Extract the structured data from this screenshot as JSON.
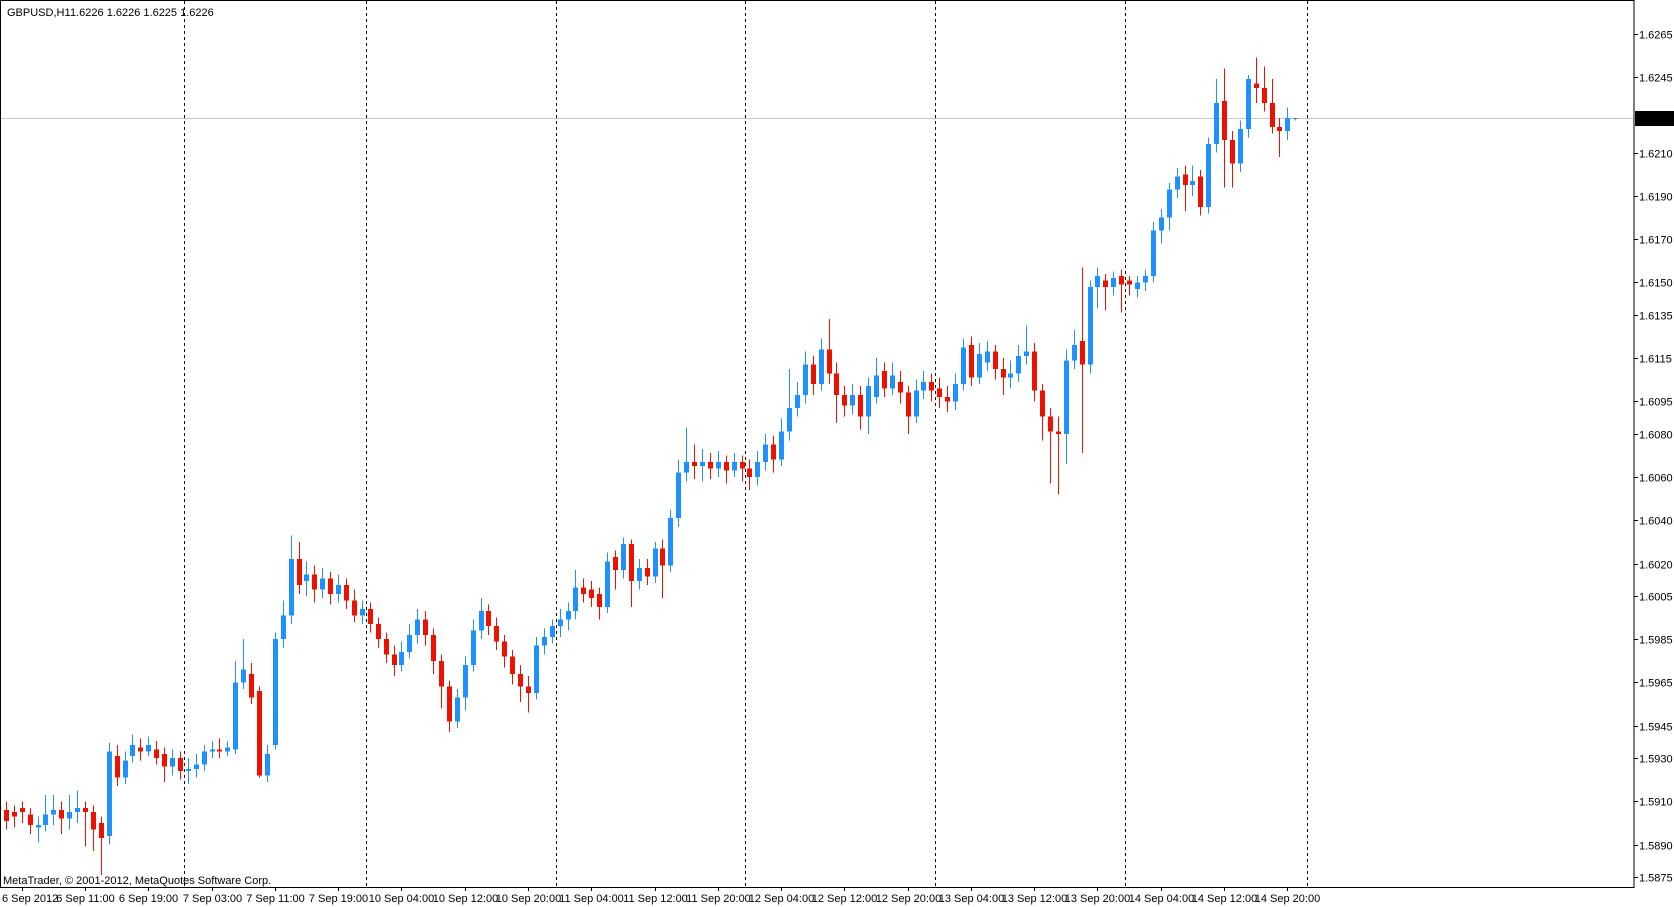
{
  "header": {
    "symbol": "GBPUSD,H1",
    "quote": "1.6226 1.6226 1.6225 1.6226"
  },
  "watermark": "MetaTrader, © 2001-2012, MetaQuotes Software Corp.",
  "colors": {
    "bull": "#1E90FF",
    "bear": "#EE1100",
    "separator": "#000000",
    "current_price_line": "#C8C8C8",
    "tag_bg": "#000000",
    "tag_text": "#FFFFFF",
    "axis_text": "#000000",
    "background": "#FFFFFF"
  },
  "y_axis": {
    "current_price": "1.6226",
    "ticks": [
      "1.6265",
      "1.6245",
      "1.6210",
      "1.6190",
      "1.6170",
      "1.6150",
      "1.6135",
      "1.6115",
      "1.6095",
      "1.6080",
      "1.6060",
      "1.6040",
      "1.6020",
      "1.6005",
      "1.5985",
      "1.5965",
      "1.5945",
      "1.5930",
      "1.5910",
      "1.5890",
      "1.5875"
    ]
  },
  "x_axis": {
    "labels": [
      {
        "index": 3,
        "text": "6 Sep 2012"
      },
      {
        "index": 11,
        "text": "6 Sep 11:00"
      },
      {
        "index": 19,
        "text": "6 Sep 19:00"
      },
      {
        "index": 27,
        "text": "7 Sep 03:00"
      },
      {
        "index": 35,
        "text": "7 Sep 11:00"
      },
      {
        "index": 43,
        "text": "7 Sep 19:00"
      },
      {
        "index": 51,
        "text": "10 Sep 04:00"
      },
      {
        "index": 59,
        "text": "10 Sep 12:00"
      },
      {
        "index": 67,
        "text": "10 Sep 20:00"
      },
      {
        "index": 75,
        "text": "11 Sep 04:00"
      },
      {
        "index": 83,
        "text": "11 Sep 12:00"
      },
      {
        "index": 91,
        "text": "11 Sep 20:00"
      },
      {
        "index": 99,
        "text": "12 Sep 04:00"
      },
      {
        "index": 107,
        "text": "12 Sep 12:00"
      },
      {
        "index": 115,
        "text": "12 Sep 20:00"
      },
      {
        "index": 123,
        "text": "13 Sep 04:00"
      },
      {
        "index": 131,
        "text": "13 Sep 12:00"
      },
      {
        "index": 139,
        "text": "13 Sep 20:00"
      },
      {
        "index": 147,
        "text": "14 Sep 04:00"
      },
      {
        "index": 155,
        "text": "14 Sep 12:00"
      },
      {
        "index": 163,
        "text": "14 Sep 20:00"
      }
    ]
  },
  "chart_data": {
    "type": "candlestick",
    "symbol": "GBPUSD",
    "timeframe": "H1",
    "title": "GBPUSD,H1",
    "current_price": 1.6226,
    "current_bar_quote": {
      "open": 1.6226,
      "high": 1.6226,
      "low": 1.6225,
      "close": 1.6226
    },
    "price_axis_ticks": [
      1.6265,
      1.6245,
      1.621,
      1.619,
      1.617,
      1.615,
      1.6135,
      1.6115,
      1.6095,
      1.608,
      1.606,
      1.604,
      1.602,
      1.6005,
      1.5985,
      1.5965,
      1.5945,
      1.593,
      1.591,
      1.589,
      1.5875
    ],
    "visible_price_range": [
      1.587,
      1.6281
    ],
    "day_start_indices": [
      24,
      47,
      71,
      95,
      119,
      143,
      166
    ],
    "grid": "vertical-day-separators",
    "legend_position": "none",
    "ohlc_note": "array of [open,high,low,close] per hourly bar, 6 Sep 2012 00:00 to 14 Sep 2012 21:00 (weekend gap omitted)",
    "ohlc": [
      [
        1.5896,
        1.5909,
        1.5889,
        1.5906
      ],
      [
        1.5906,
        1.591,
        1.5897,
        1.5901
      ],
      [
        1.5905,
        1.5908,
        1.5898,
        1.5903
      ],
      [
        1.5907,
        1.591,
        1.59,
        1.5905
      ],
      [
        1.5904,
        1.5907,
        1.5895,
        1.5899
      ],
      [
        1.5898,
        1.5903,
        1.5891,
        1.5899
      ],
      [
        1.5899,
        1.5913,
        1.5896,
        1.5904
      ],
      [
        1.5904,
        1.5913,
        1.5899,
        1.5906
      ],
      [
        1.5906,
        1.591,
        1.5895,
        1.5902
      ],
      [
        1.5902,
        1.5913,
        1.5897,
        1.5905
      ],
      [
        1.5905,
        1.5915,
        1.59,
        1.5907
      ],
      [
        1.5907,
        1.591,
        1.5889,
        1.5905
      ],
      [
        1.5905,
        1.5908,
        1.5887,
        1.5897
      ],
      [
        1.59,
        1.5903,
        1.5876,
        1.5893
      ],
      [
        1.5894,
        1.5937,
        1.589,
        1.5933
      ],
      [
        1.5931,
        1.5936,
        1.5917,
        1.5921
      ],
      [
        1.5921,
        1.5933,
        1.5918,
        1.5929
      ],
      [
        1.5931,
        1.5941,
        1.5928,
        1.5936
      ],
      [
        1.5935,
        1.5939,
        1.5929,
        1.5933
      ],
      [
        1.5933,
        1.594,
        1.5931,
        1.5936
      ],
      [
        1.5934,
        1.5938,
        1.5927,
        1.593
      ],
      [
        1.5932,
        1.5935,
        1.5919,
        1.5926
      ],
      [
        1.5926,
        1.5934,
        1.5922,
        1.593
      ],
      [
        1.593,
        1.5933,
        1.592,
        1.5924
      ],
      [
        1.5924,
        1.593,
        1.5918,
        1.5925
      ],
      [
        1.5925,
        1.5932,
        1.5921,
        1.5927
      ],
      [
        1.5927,
        1.5936,
        1.5924,
        1.5933
      ],
      [
        1.5933,
        1.5938,
        1.593,
        1.5934
      ],
      [
        1.5934,
        1.5939,
        1.593,
        1.5933
      ],
      [
        1.5933,
        1.5938,
        1.5931,
        1.5935
      ],
      [
        1.5934,
        1.5975,
        1.5932,
        1.5965
      ],
      [
        1.5965,
        1.5985,
        1.5962,
        1.5971
      ],
      [
        1.5969,
        1.5974,
        1.5955,
        1.5958
      ],
      [
        1.5961,
        1.5963,
        1.5921,
        1.5922
      ],
      [
        1.5922,
        1.5936,
        1.5919,
        1.5932
      ],
      [
        1.5936,
        1.5988,
        1.5934,
        1.5985
      ],
      [
        1.5985,
        1.6003,
        1.5981,
        1.5996
      ],
      [
        1.5996,
        1.6033,
        1.5992,
        1.6022
      ],
      [
        1.6022,
        1.603,
        1.6006,
        1.601
      ],
      [
        1.6012,
        1.6021,
        1.6005,
        1.6015
      ],
      [
        1.6015,
        1.6019,
        1.6002,
        1.6008
      ],
      [
        1.6008,
        1.6018,
        1.6004,
        1.6013
      ],
      [
        1.6013,
        1.6016,
        1.6001,
        1.6006
      ],
      [
        1.6006,
        1.6015,
        1.6002,
        1.601
      ],
      [
        1.601,
        1.6013,
        1.5999,
        1.6003
      ],
      [
        1.6003,
        1.6008,
        1.5993,
        1.5996
      ],
      [
        1.5996,
        1.6003,
        1.5992,
        1.5999
      ],
      [
        1.5999,
        1.6002,
        1.5988,
        1.5992
      ],
      [
        1.5992,
        1.5995,
        1.5981,
        1.5985
      ],
      [
        1.5985,
        1.5988,
        1.5974,
        1.5978
      ],
      [
        1.5978,
        1.5982,
        1.5968,
        1.5973
      ],
      [
        1.5973,
        1.5984,
        1.597,
        1.5979
      ],
      [
        1.5979,
        1.5992,
        1.5976,
        1.5987
      ],
      [
        1.5987,
        1.5999,
        1.5983,
        1.5994
      ],
      [
        1.5994,
        1.5998,
        1.5982,
        1.5987
      ],
      [
        1.5987,
        1.599,
        1.5969,
        1.5975
      ],
      [
        1.5975,
        1.5978,
        1.5953,
        1.5963
      ],
      [
        1.5963,
        1.5966,
        1.5942,
        1.5947
      ],
      [
        1.5947,
        1.5962,
        1.5944,
        1.5958
      ],
      [
        1.5958,
        1.5977,
        1.5952,
        1.5973
      ],
      [
        1.5973,
        1.5994,
        1.597,
        1.5989
      ],
      [
        1.5989,
        1.6004,
        1.5985,
        1.5998
      ],
      [
        1.5998,
        1.6001,
        1.5987,
        1.5991
      ],
      [
        1.5991,
        1.5995,
        1.598,
        1.5984
      ],
      [
        1.5984,
        1.5987,
        1.5972,
        1.5977
      ],
      [
        1.5977,
        1.598,
        1.5964,
        1.5969
      ],
      [
        1.5969,
        1.5973,
        1.5956,
        1.5963
      ],
      [
        1.5963,
        1.5968,
        1.5951,
        1.596
      ],
      [
        1.596,
        1.5986,
        1.5957,
        1.5982
      ],
      [
        1.5982,
        1.599,
        1.5978,
        1.5986
      ],
      [
        1.5986,
        1.5994,
        1.5983,
        1.5991
      ],
      [
        1.5991,
        1.5999,
        1.5986,
        1.5994
      ],
      [
        1.5994,
        1.6002,
        1.5989,
        1.5998
      ],
      [
        1.5998,
        1.6017,
        1.5994,
        1.6009
      ],
      [
        1.6009,
        1.6013,
        1.6002,
        1.6006
      ],
      [
        1.6008,
        1.6012,
        1.6,
        1.6004
      ],
      [
        1.6006,
        1.6009,
        1.5994,
        1.6
      ],
      [
        1.6,
        1.6025,
        1.5997,
        1.6021
      ],
      [
        1.6023,
        1.6026,
        1.6008,
        1.6017
      ],
      [
        1.6017,
        1.6032,
        1.6013,
        1.6029
      ],
      [
        1.6029,
        1.6031,
        1.6,
        1.6012
      ],
      [
        1.6012,
        1.6022,
        1.6008,
        1.6018
      ],
      [
        1.6018,
        1.6022,
        1.601,
        1.6014
      ],
      [
        1.6014,
        1.603,
        1.6011,
        1.6027
      ],
      [
        1.6027,
        1.6031,
        1.6004,
        1.6019
      ],
      [
        1.6019,
        1.6045,
        1.6016,
        1.6041
      ],
      [
        1.6041,
        1.6068,
        1.6037,
        1.6062
      ],
      [
        1.6062,
        1.6083,
        1.6058,
        1.6067
      ],
      [
        1.6067,
        1.6075,
        1.6059,
        1.6065
      ],
      [
        1.6065,
        1.6073,
        1.6058,
        1.6067
      ],
      [
        1.6067,
        1.6071,
        1.6059,
        1.6064
      ],
      [
        1.6064,
        1.6072,
        1.606,
        1.6067
      ],
      [
        1.6067,
        1.607,
        1.6057,
        1.6063
      ],
      [
        1.6063,
        1.6071,
        1.606,
        1.6067
      ],
      [
        1.6067,
        1.607,
        1.6058,
        1.6064
      ],
      [
        1.6064,
        1.6068,
        1.6054,
        1.606
      ],
      [
        1.606,
        1.6072,
        1.6056,
        1.6067
      ],
      [
        1.6067,
        1.608,
        1.6063,
        1.6075
      ],
      [
        1.6075,
        1.6079,
        1.6062,
        1.6068
      ],
      [
        1.6068,
        1.6087,
        1.6065,
        1.6081
      ],
      [
        1.6081,
        1.611,
        1.6077,
        1.6092
      ],
      [
        1.6092,
        1.6104,
        1.6088,
        1.6098
      ],
      [
        1.6098,
        1.6118,
        1.6094,
        1.6112
      ],
      [
        1.6112,
        1.6116,
        1.6098,
        1.6103
      ],
      [
        1.6103,
        1.6124,
        1.61,
        1.6119
      ],
      [
        1.6119,
        1.6133,
        1.6103,
        1.6108
      ],
      [
        1.6108,
        1.6113,
        1.6085,
        1.6098
      ],
      [
        1.6098,
        1.6102,
        1.6088,
        1.6093
      ],
      [
        1.6093,
        1.6103,
        1.6089,
        1.6098
      ],
      [
        1.6098,
        1.6102,
        1.6082,
        1.6088
      ],
      [
        1.6088,
        1.6106,
        1.608,
        1.6102
      ],
      [
        1.6097,
        1.6115,
        1.6094,
        1.6107
      ],
      [
        1.6109,
        1.6113,
        1.6097,
        1.6101
      ],
      [
        1.6101,
        1.6113,
        1.6098,
        1.6107
      ],
      [
        1.6104,
        1.6109,
        1.6094,
        1.6099
      ],
      [
        1.6099,
        1.6102,
        1.608,
        1.6088
      ],
      [
        1.6088,
        1.6105,
        1.6085,
        1.61
      ],
      [
        1.61,
        1.6109,
        1.6096,
        1.6104
      ],
      [
        1.6104,
        1.6108,
        1.6095,
        1.61
      ],
      [
        1.6101,
        1.6106,
        1.6092,
        1.6097
      ],
      [
        1.6097,
        1.6102,
        1.609,
        1.6095
      ],
      [
        1.6095,
        1.6108,
        1.6091,
        1.6103
      ],
      [
        1.6103,
        1.6124,
        1.61,
        1.612
      ],
      [
        1.6121,
        1.6125,
        1.6102,
        1.6106
      ],
      [
        1.6106,
        1.6122,
        1.6103,
        1.6117
      ],
      [
        1.6113,
        1.6123,
        1.6109,
        1.6118
      ],
      [
        1.6118,
        1.6121,
        1.6105,
        1.611
      ],
      [
        1.611,
        1.6115,
        1.6098,
        1.6106
      ],
      [
        1.6106,
        1.6114,
        1.6101,
        1.6108
      ],
      [
        1.6108,
        1.6121,
        1.6104,
        1.6116
      ],
      [
        1.6116,
        1.613,
        1.6112,
        1.6118
      ],
      [
        1.6118,
        1.6122,
        1.6095,
        1.61
      ],
      [
        1.61,
        1.6103,
        1.6077,
        1.6088
      ],
      [
        1.6088,
        1.6092,
        1.6057,
        1.6081
      ],
      [
        1.6081,
        1.6088,
        1.6052,
        1.608
      ],
      [
        1.608,
        1.6119,
        1.6066,
        1.6114
      ],
      [
        1.6114,
        1.6128,
        1.611,
        1.6121
      ],
      [
        1.6123,
        1.6157,
        1.6071,
        1.6112
      ],
      [
        1.6112,
        1.6151,
        1.6108,
        1.6148
      ],
      [
        1.6148,
        1.6157,
        1.6138,
        1.6153
      ],
      [
        1.6151,
        1.6154,
        1.6137,
        1.6148
      ],
      [
        1.6148,
        1.6155,
        1.6144,
        1.6152
      ],
      [
        1.6153,
        1.6156,
        1.6136,
        1.6149
      ],
      [
        1.6151,
        1.6153,
        1.6144,
        1.6149
      ],
      [
        1.6147,
        1.6153,
        1.6143,
        1.615
      ],
      [
        1.615,
        1.6156,
        1.6146,
        1.6153
      ],
      [
        1.6153,
        1.6178,
        1.615,
        1.6174
      ],
      [
        1.6174,
        1.6184,
        1.6168,
        1.618
      ],
      [
        1.618,
        1.6196,
        1.6174,
        1.6193
      ],
      [
        1.6193,
        1.6203,
        1.6189,
        1.6199
      ],
      [
        1.62,
        1.6204,
        1.6183,
        1.6195
      ],
      [
        1.6195,
        1.6204,
        1.619,
        1.6197
      ],
      [
        1.6199,
        1.6202,
        1.6181,
        1.6185
      ],
      [
        1.6185,
        1.6217,
        1.6182,
        1.6214
      ],
      [
        1.6214,
        1.6244,
        1.621,
        1.6233
      ],
      [
        1.6234,
        1.6249,
        1.6194,
        1.6216
      ],
      [
        1.6216,
        1.622,
        1.6194,
        1.6205
      ],
      [
        1.6205,
        1.6225,
        1.6201,
        1.6221
      ],
      [
        1.6221,
        1.6246,
        1.6217,
        1.6244
      ],
      [
        1.6242,
        1.6254,
        1.6233,
        1.624
      ],
      [
        1.624,
        1.625,
        1.6229,
        1.6233
      ],
      [
        1.6233,
        1.6244,
        1.6219,
        1.6222
      ],
      [
        1.6222,
        1.6226,
        1.6208,
        1.622
      ],
      [
        1.622,
        1.6231,
        1.6216,
        1.6226
      ],
      [
        1.6226,
        1.6226,
        1.6225,
        1.6226
      ]
    ]
  }
}
